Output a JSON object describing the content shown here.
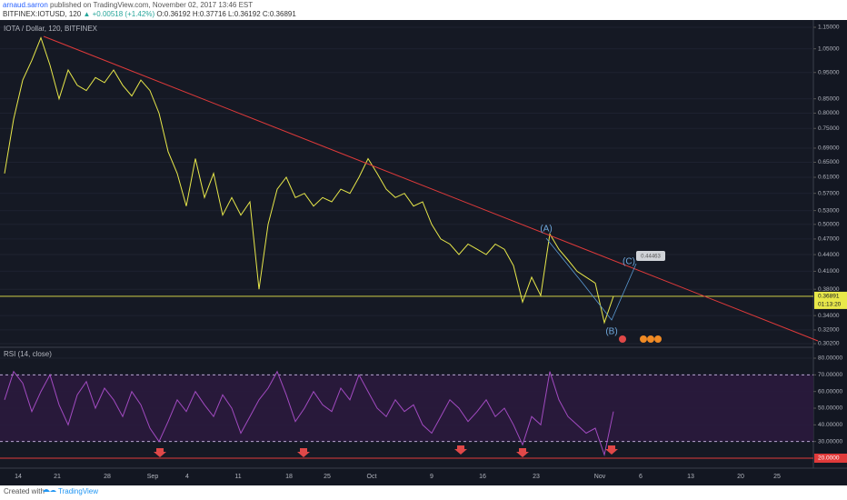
{
  "header": {
    "author": "arnaud.sarron",
    "published": " published on TradingView.com, November 02, 2017 13:46 EST",
    "symbol": "BITFINEX:IOTUSD, 120",
    "change": " ▲ +0.00518 (+1.42%)",
    "ohlc": " O:0.36192 H:0.37716 L:0.36192 C:0.36891"
  },
  "chart_data": [
    {
      "type": "line",
      "title": "IOTA / Dollar, 120, BITFINEX",
      "color": "#e8e84a",
      "log_scale": true,
      "values": [
        0.62,
        0.78,
        0.92,
        1.0,
        1.1,
        0.98,
        0.85,
        0.96,
        0.9,
        0.88,
        0.93,
        0.91,
        0.96,
        0.9,
        0.86,
        0.92,
        0.88,
        0.8,
        0.68,
        0.62,
        0.54,
        0.66,
        0.56,
        0.62,
        0.52,
        0.56,
        0.52,
        0.55,
        0.38,
        0.5,
        0.58,
        0.61,
        0.56,
        0.57,
        0.54,
        0.56,
        0.55,
        0.58,
        0.57,
        0.61,
        0.66,
        0.62,
        0.58,
        0.56,
        0.57,
        0.54,
        0.55,
        0.5,
        0.47,
        0.46,
        0.44,
        0.46,
        0.45,
        0.44,
        0.46,
        0.45,
        0.42,
        0.36,
        0.4,
        0.37,
        0.48,
        0.45,
        0.43,
        0.41,
        0.4,
        0.39,
        0.33,
        0.36891
      ],
      "ylim": [
        0.302,
        1.15
      ],
      "yticks": [
        {
          "value": 1.15,
          "label": "1.15000"
        },
        {
          "value": 1.05,
          "label": "1.05000"
        },
        {
          "value": 0.95,
          "label": "0.95000"
        },
        {
          "value": 0.85,
          "label": "0.85000"
        },
        {
          "value": 0.8,
          "label": "0.80000"
        },
        {
          "value": 0.75,
          "label": "0.75000"
        },
        {
          "value": 0.69,
          "label": "0.69000"
        },
        {
          "value": 0.65,
          "label": "0.65000"
        },
        {
          "value": 0.61,
          "label": "0.61000"
        },
        {
          "value": 0.57,
          "label": "0.57000"
        },
        {
          "value": 0.53,
          "label": "0.53000"
        },
        {
          "value": 0.5,
          "label": "0.50000"
        },
        {
          "value": 0.47,
          "label": "0.47000"
        },
        {
          "value": 0.44,
          "label": "0.44000"
        },
        {
          "value": 0.41,
          "label": "0.41000"
        },
        {
          "value": 0.38,
          "label": "0.38000"
        },
        {
          "value": 0.34,
          "label": "0.34000"
        },
        {
          "value": 0.32,
          "label": "0.32000"
        },
        {
          "value": 0.302,
          "label": "0.30200"
        }
      ],
      "price_label": {
        "value": 0.36891,
        "label": "0.36891"
      },
      "countdown": "01:13:20",
      "annotations": [
        "(A)",
        "(B)",
        "(C)",
        "0.44463"
      ],
      "x_labels": [
        "14",
        "21",
        "28",
        "Sep",
        "4",
        "11",
        "18",
        "25",
        "Oct",
        "9",
        "16",
        "23",
        "Nov",
        "6",
        "13",
        "20",
        "25"
      ]
    },
    {
      "type": "line",
      "title": "RSI (14, close)",
      "color": "#a24bc1",
      "values": [
        55,
        72,
        65,
        48,
        60,
        70,
        52,
        40,
        58,
        66,
        50,
        62,
        55,
        45,
        60,
        52,
        38,
        30,
        42,
        55,
        48,
        60,
        52,
        45,
        58,
        50,
        35,
        45,
        55,
        62,
        72,
        58,
        42,
        50,
        60,
        52,
        48,
        62,
        55,
        70,
        60,
        50,
        45,
        55,
        48,
        52,
        40,
        35,
        45,
        55,
        50,
        42,
        48,
        55,
        45,
        50,
        40,
        28,
        45,
        40,
        72,
        55,
        45,
        40,
        35,
        38,
        22,
        48
      ],
      "ylim": [
        14,
        86
      ],
      "yticks": [
        {
          "value": 80,
          "label": "80.00000"
        },
        {
          "value": 70,
          "label": "70.00000"
        },
        {
          "value": 60,
          "label": "60.00000"
        },
        {
          "value": 50,
          "label": "50.00000"
        },
        {
          "value": 40,
          "label": "40.00000"
        },
        {
          "value": 30,
          "label": "30.00000"
        }
      ],
      "band": {
        "low": 30,
        "high": 70
      },
      "level_line": {
        "value": 20,
        "label": "20.0000"
      }
    }
  ],
  "footer": {
    "created": "Created with",
    "brand": "TradingView"
  }
}
